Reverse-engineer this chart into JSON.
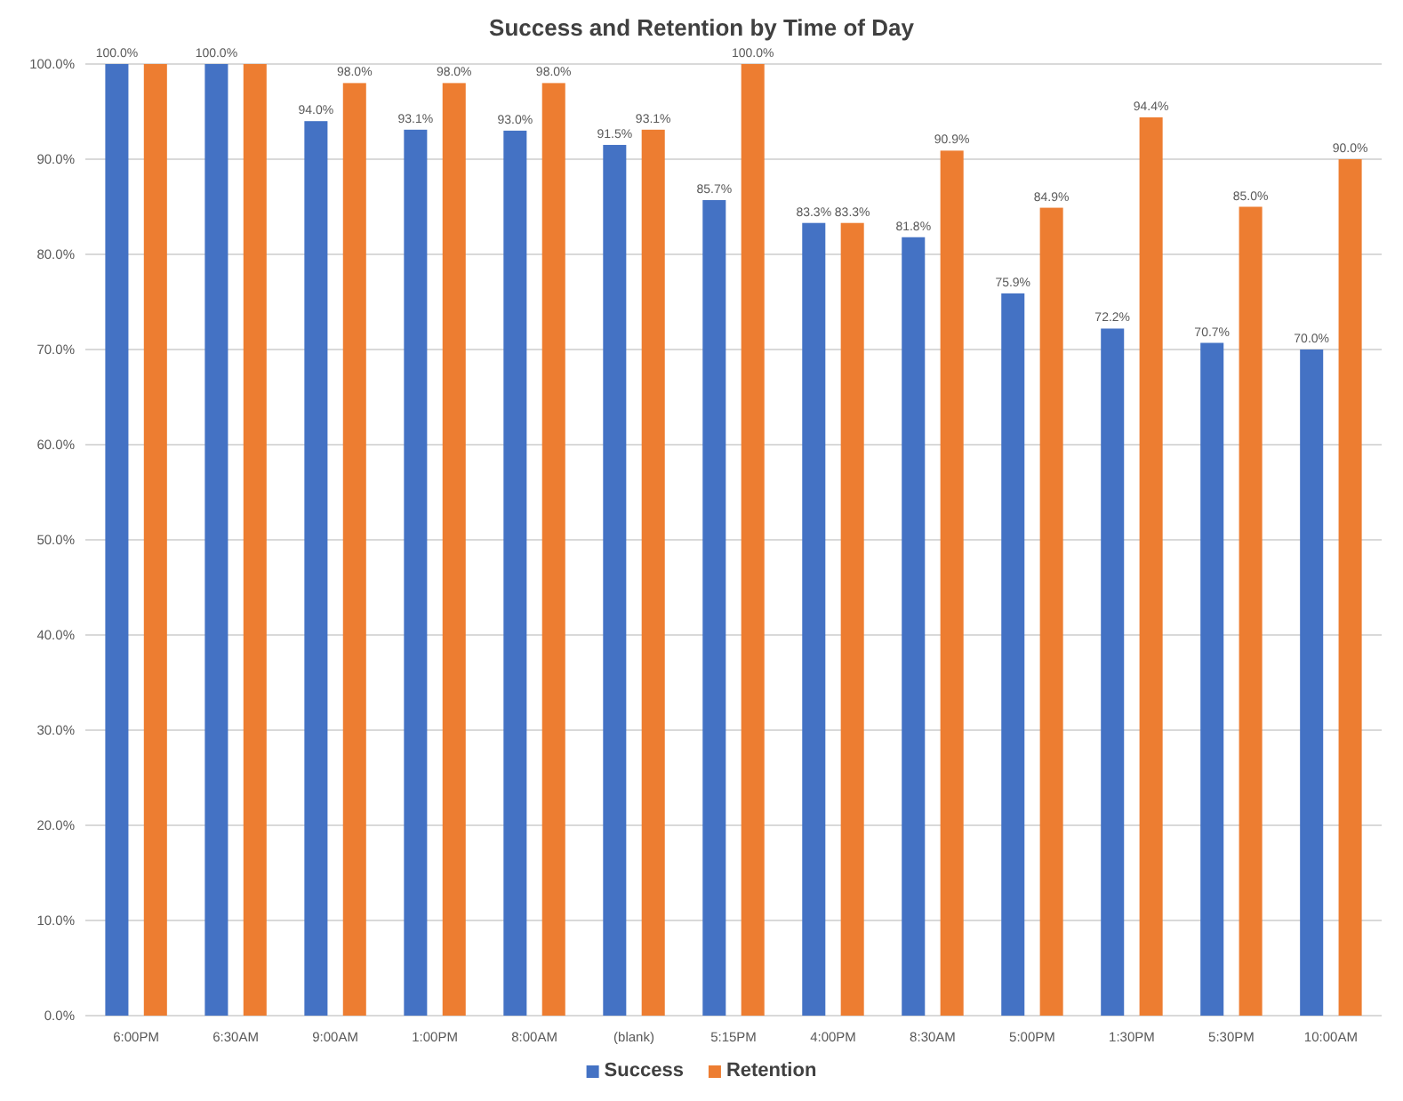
{
  "chart_data": {
    "type": "bar",
    "title": "Success and Retention by Time of Day",
    "categories": [
      "6:00PM",
      "6:30AM",
      "9:00AM",
      "1:00PM",
      "8:00AM",
      "(blank)",
      "5:15PM",
      "4:00PM",
      "8:30AM",
      "5:00PM",
      "1:30PM",
      "5:30PM",
      "10:00AM"
    ],
    "series": [
      {
        "name": "Success",
        "color": "#4472c4",
        "values": [
          100.0,
          100.0,
          94.0,
          93.1,
          93.0,
          91.5,
          85.7,
          83.3,
          81.8,
          75.9,
          72.2,
          70.7,
          70.0
        ],
        "value_labels": [
          "100.0%",
          "100.0%",
          "94.0%",
          "93.1%",
          "93.0%",
          "91.5%",
          "85.7%",
          "83.3%",
          "81.8%",
          "75.9%",
          "72.2%",
          "70.7%",
          "70.0%"
        ]
      },
      {
        "name": "Retention",
        "color": "#ed7d31",
        "values": [
          100.0,
          100.0,
          98.0,
          98.0,
          98.0,
          93.1,
          100.0,
          83.3,
          90.9,
          84.9,
          94.4,
          85.0,
          90.0
        ],
        "value_labels": [
          null,
          null,
          "98.0%",
          "98.0%",
          "98.0%",
          "93.1%",
          "100.0%",
          "83.3%",
          "90.9%",
          "84.9%",
          "94.4%",
          "85.0%",
          "90.0%"
        ]
      }
    ],
    "ylim": [
      0,
      100
    ],
    "yticks": [
      {
        "value": 0,
        "label": "0.0%"
      },
      {
        "value": 10,
        "label": "10.0%"
      },
      {
        "value": 20,
        "label": "20.0%"
      },
      {
        "value": 30,
        "label": "30.0%"
      },
      {
        "value": 40,
        "label": "40.0%"
      },
      {
        "value": 50,
        "label": "50.0%"
      },
      {
        "value": 60,
        "label": "60.0%"
      },
      {
        "value": 70,
        "label": "70.0%"
      },
      {
        "value": 80,
        "label": "80.0%"
      },
      {
        "value": 90,
        "label": "90.0%"
      },
      {
        "value": 100,
        "label": "100.0%"
      }
    ],
    "grid": "y",
    "legend": "bottom"
  }
}
